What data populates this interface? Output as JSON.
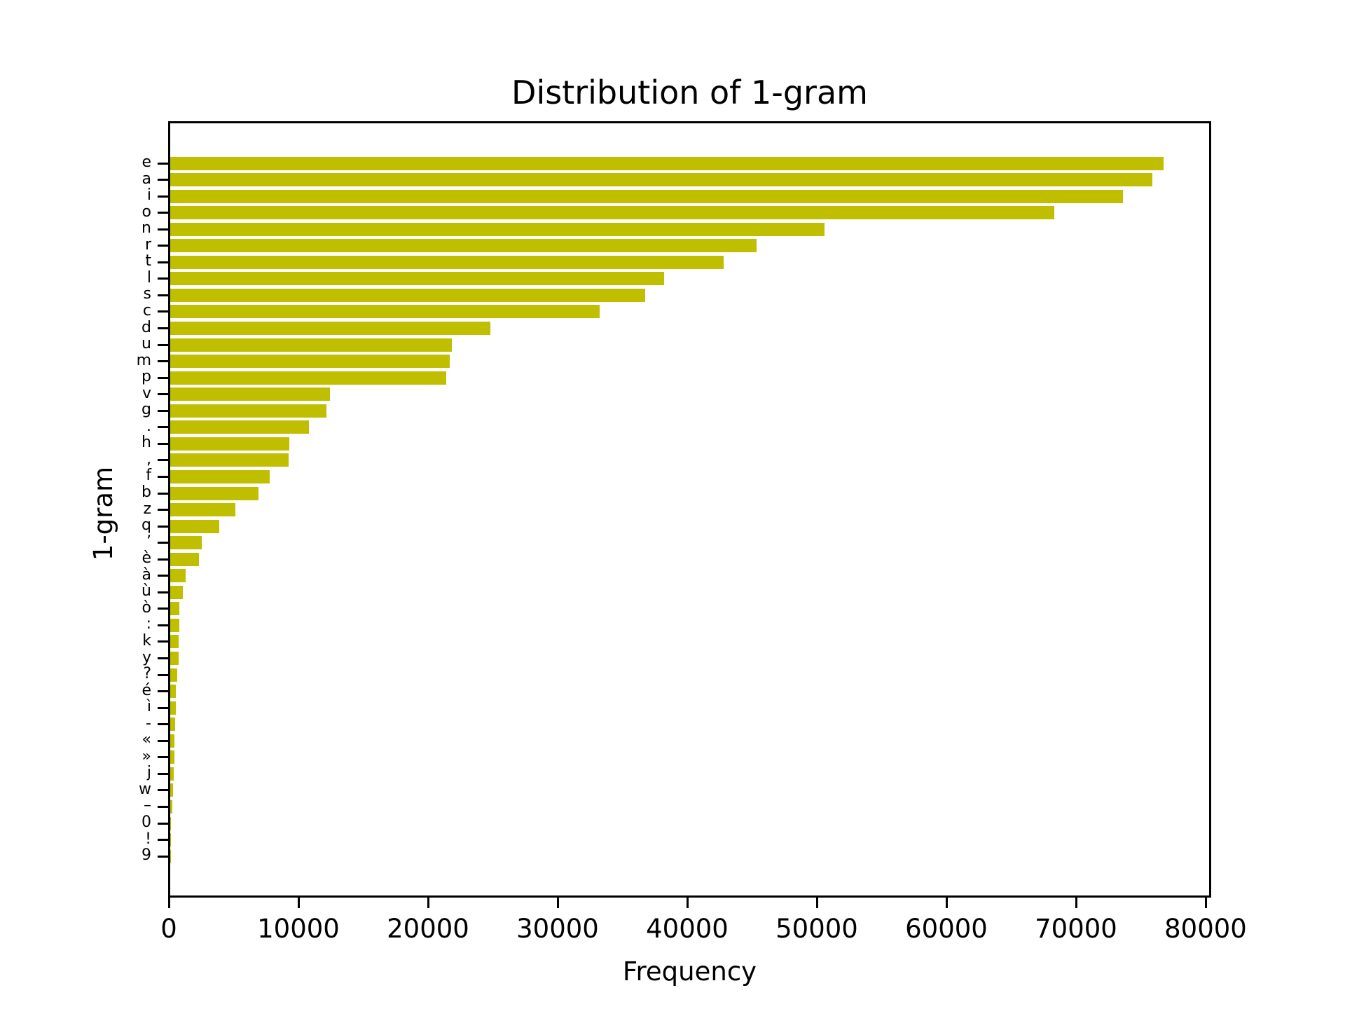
{
  "chart_data": {
    "type": "bar",
    "orientation": "horizontal",
    "title": "Distribution of 1-gram",
    "xlabel": "Frequency",
    "ylabel": "1-gram",
    "xlim": [
      0,
      80500
    ],
    "xticks": [
      0,
      10000,
      20000,
      30000,
      40000,
      50000,
      60000,
      70000,
      80000
    ],
    "xtick_labels": [
      "0",
      "10000",
      "20000",
      "30000",
      "40000",
      "50000",
      "60000",
      "70000",
      "80000"
    ],
    "grid": false,
    "legend": null,
    "bar_color": "#bfbf00",
    "categories": [
      "e",
      "a",
      "i",
      "o",
      "n",
      "r",
      "t",
      "l",
      "s",
      "c",
      "d",
      "u",
      "m",
      "p",
      "v",
      "g",
      ".",
      "h",
      ",",
      "f",
      "b",
      "z",
      "q",
      "’",
      "è",
      "à",
      "ù",
      "ò",
      ":",
      "k",
      "y",
      "?",
      "é",
      "ì",
      "-",
      "«",
      "»",
      "j",
      "w",
      "–",
      "0",
      "!",
      "9"
    ],
    "values": [
      76650,
      75780,
      73510,
      68220,
      50490,
      45240,
      42700,
      38110,
      36650,
      33140,
      24700,
      21730,
      21570,
      21300,
      12320,
      12050,
      10700,
      9190,
      9140,
      7680,
      6810,
      5030,
      3780,
      2430,
      2220,
      1190,
      970,
      700,
      700,
      650,
      650,
      540,
      430,
      430,
      360,
      310,
      310,
      250,
      200,
      140,
      50,
      50,
      40
    ]
  }
}
